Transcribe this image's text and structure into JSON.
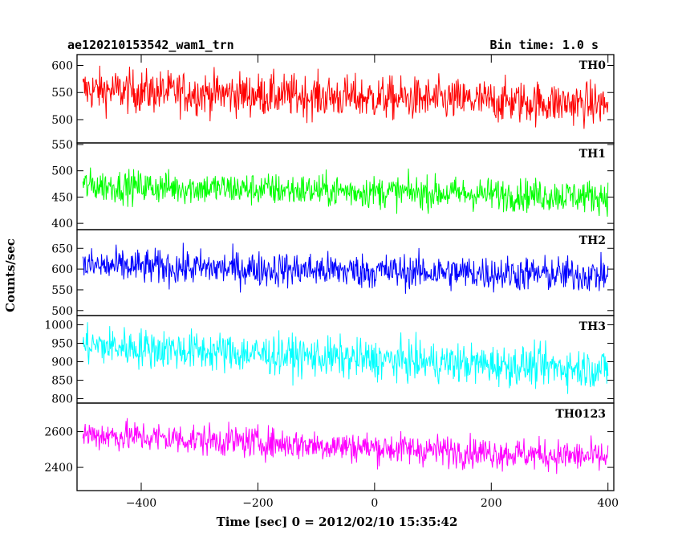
{
  "chart_data": {
    "type": "line",
    "title": "ae120210153542_wam1_trn",
    "subtitle": "Bin time: 1.0 s",
    "xlabel": "Time [sec] 0 = 2012/02/10 15:35:42",
    "ylabel": "Counts/sec",
    "xlim": [
      -510,
      410
    ],
    "xticks": [
      -400,
      -200,
      0,
      200,
      400
    ],
    "x_start": -500,
    "x_end": 400,
    "bin_time": 1.0,
    "grid": false,
    "panels": [
      {
        "name": "TH0",
        "color": "#ff0000",
        "ylim": [
          457,
          620
        ],
        "yticks": [
          500,
          550,
          600
        ],
        "trend": [
          [
            -500,
            555
          ],
          [
            0,
            540
          ],
          [
            400,
            528
          ]
        ],
        "noise": 28,
        "yrange_seen": [
          480,
          620
        ]
      },
      {
        "name": "TH1",
        "color": "#00ff00",
        "ylim": [
          388,
          553
        ],
        "yticks": [
          400,
          450,
          500,
          550
        ],
        "trend": [
          [
            -500,
            472
          ],
          [
            0,
            460
          ],
          [
            400,
            451
          ]
        ],
        "noise": 22,
        "yrange_seen": [
          395,
          550
        ]
      },
      {
        "name": "TH2",
        "color": "#0000ff",
        "ylim": [
          488,
          695
        ],
        "yticks": [
          500,
          550,
          600,
          650
        ],
        "trend": [
          [
            -500,
            608
          ],
          [
            0,
            595
          ],
          [
            400,
            585
          ]
        ],
        "noise": 30,
        "yrange_seen": [
          505,
          695
        ]
      },
      {
        "name": "TH3",
        "color": "#00ffff",
        "ylim": [
          788,
          1025
        ],
        "yticks": [
          800,
          850,
          900,
          950,
          1000
        ],
        "trend": [
          [
            -500,
            945
          ],
          [
            0,
            905
          ],
          [
            400,
            880
          ]
        ],
        "noise": 38,
        "yrange_seen": [
          795,
          1025
        ]
      },
      {
        "name": "TH0123",
        "color": "#ff00ff",
        "ylim": [
          2270,
          2760
        ],
        "yticks": [
          2400,
          2600
        ],
        "trend": [
          [
            -500,
            2585
          ],
          [
            0,
            2510
          ],
          [
            400,
            2455
          ]
        ],
        "noise": 62,
        "yrange_seen": [
          2290,
          2750
        ]
      }
    ]
  }
}
